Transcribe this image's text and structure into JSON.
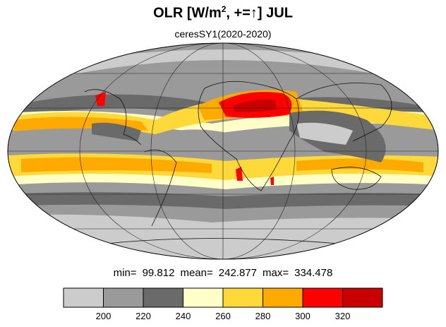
{
  "title": {
    "pre": "OLR [W/m",
    "sup": "2",
    "post": ", +=",
    "arrow": "↑",
    "tail": "] JUL"
  },
  "subtitle": "ceresSY1(2020-2020)",
  "stats": {
    "min_label": "min=",
    "min_value": "99.812",
    "mean_label": "mean=",
    "mean_value": "242.877",
    "max_label": "max=",
    "max_value": "334.478"
  },
  "colorbar": {
    "colors": [
      "#cccccc",
      "#9a9a9a",
      "#6a6a6a",
      "#ffffc8",
      "#ffd83a",
      "#ffaa00",
      "#ff0000",
      "#c80000"
    ],
    "tick_labels": [
      "200",
      "220",
      "240",
      "260",
      "280",
      "300",
      "320"
    ]
  },
  "map": {
    "projection": "mollweide",
    "ocean_land_base_color": "#9a9a9a"
  }
}
